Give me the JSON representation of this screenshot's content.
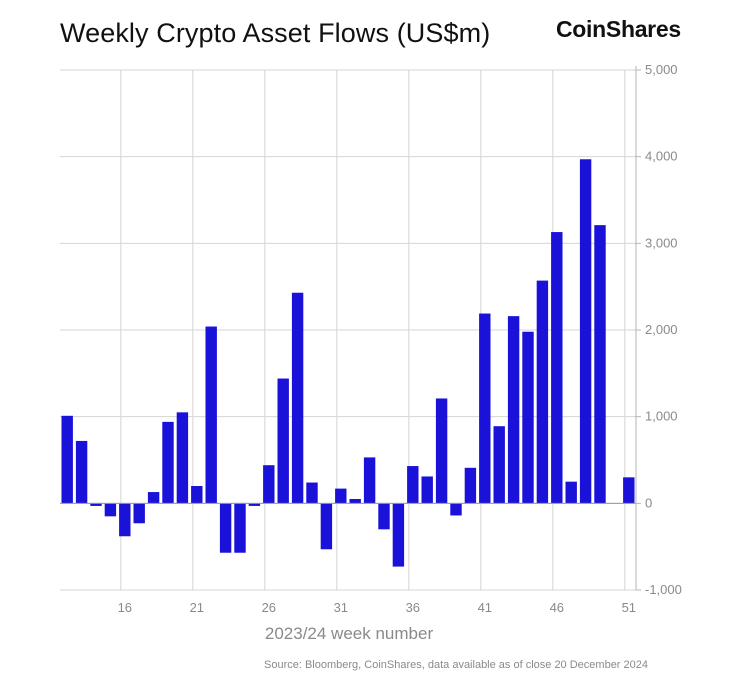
{
  "chart_data": {
    "type": "bar",
    "title": "Weekly Crypto Asset Flows (US$m)",
    "xlabel": "2023/24 week number",
    "ylabel": "",
    "ylim": [
      -1000,
      5000
    ],
    "yticks": [
      5000,
      4000,
      3000,
      2000,
      1000,
      0,
      -1000
    ],
    "ytick_labels": [
      "5,000",
      "4,000",
      "3,000",
      "2,000",
      "1,000",
      "0",
      "-1,000"
    ],
    "xticks": [
      16,
      21,
      26,
      31,
      36,
      41,
      46,
      51
    ],
    "bar_color": "#1a12d9",
    "categories": [
      12,
      13,
      14,
      15,
      16,
      17,
      18,
      19,
      20,
      21,
      22,
      23,
      24,
      25,
      26,
      27,
      28,
      29,
      30,
      31,
      32,
      33,
      34,
      35,
      36,
      37,
      38,
      39,
      40,
      41,
      42,
      43,
      44,
      45,
      46,
      47,
      48,
      49,
      50,
      51
    ],
    "values": [
      1010,
      720,
      -30,
      -150,
      -380,
      -230,
      130,
      940,
      1050,
      200,
      2040,
      -570,
      -570,
      -30,
      440,
      1440,
      2430,
      240,
      -530,
      170,
      50,
      530,
      -300,
      -730,
      430,
      310,
      1210,
      -140,
      410,
      2190,
      890,
      2160,
      1980,
      2570,
      3130,
      250,
      3970,
      3210,
      0,
      300
    ]
  },
  "brand": {
    "name": "CoinShares"
  },
  "source": "Source: Bloomberg, CoinShares, data available as of close 20 December 2024"
}
